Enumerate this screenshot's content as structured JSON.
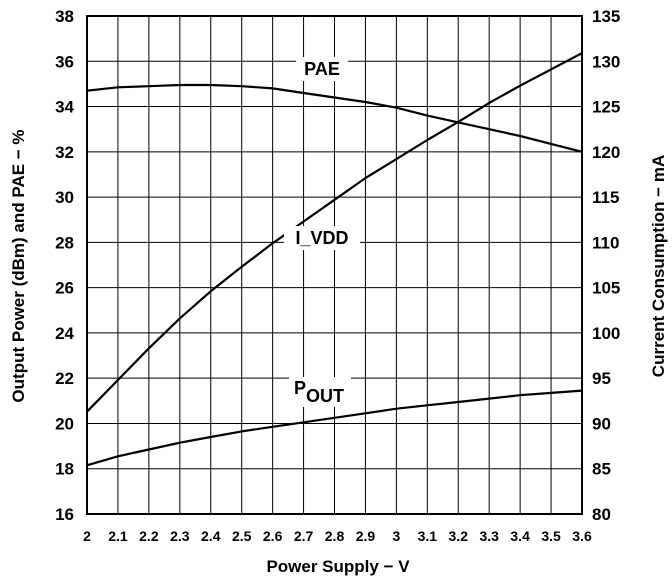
{
  "chart_data": {
    "type": "line",
    "xlabel": "Power Supply − V",
    "ylabel": "Output Power (dBm) and PAE − %",
    "y2label": "Current Consumption − mA",
    "xlim": [
      2,
      3.6
    ],
    "ylim": [
      16,
      38
    ],
    "y2lim": [
      80,
      135
    ],
    "x_ticks": [
      "2",
      "2.1",
      "2.2",
      "2.3",
      "2.4",
      "2.5",
      "2.6",
      "2.7",
      "2.8",
      "2.9",
      "3",
      "3.1",
      "3.2",
      "3.3",
      "3.4",
      "3.5",
      "3.6"
    ],
    "y_ticks": [
      "16",
      "18",
      "20",
      "22",
      "24",
      "26",
      "28",
      "30",
      "32",
      "34",
      "36",
      "38"
    ],
    "y2_ticks": [
      "80",
      "85",
      "90",
      "95",
      "100",
      "105",
      "110",
      "115",
      "120",
      "125",
      "130",
      "135"
    ],
    "grid": true,
    "x": [
      2.0,
      2.1,
      2.2,
      2.3,
      2.4,
      2.5,
      2.6,
      2.7,
      2.8,
      2.9,
      3.0,
      3.1,
      3.2,
      3.3,
      3.4,
      3.5,
      3.6
    ],
    "series": [
      {
        "name": "PAE",
        "axis": "left",
        "label_text": "PAE",
        "values": [
          34.7,
          34.85,
          34.9,
          34.95,
          34.95,
          34.9,
          34.8,
          34.6,
          34.4,
          34.2,
          33.95,
          33.6,
          33.3,
          33.0,
          32.7,
          32.35,
          32.0
        ]
      },
      {
        "name": "I_VDD",
        "axis": "right",
        "label_text": "I_VDD",
        "values": [
          91.3,
          94.8,
          98.3,
          101.6,
          104.6,
          107.3,
          109.9,
          112.3,
          114.7,
          117.1,
          119.2,
          121.3,
          123.3,
          125.4,
          127.3,
          129.1,
          130.9
        ]
      },
      {
        "name": "POUT",
        "axis": "left",
        "label_main": "P",
        "label_sub": "OUT",
        "values": [
          18.15,
          18.55,
          18.85,
          19.15,
          19.4,
          19.65,
          19.85,
          20.05,
          20.25,
          20.45,
          20.65,
          20.8,
          20.95,
          21.1,
          21.25,
          21.35,
          21.45
        ]
      }
    ]
  }
}
